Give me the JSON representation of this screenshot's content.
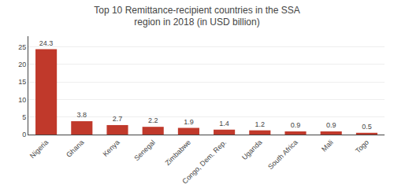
{
  "chart_data": {
    "type": "bar",
    "title": "Top 10 Remittance-recipient countries in the SSA\nregion in 2018 (in USD billion)",
    "categories": [
      "Nigeria",
      "Ghana",
      "Kenya",
      "Senegal",
      "Zimbabwe",
      "Congo, Dem. Rep.",
      "Uganda",
      "South Africa",
      "Mali",
      "Togo"
    ],
    "values": [
      24.3,
      3.8,
      2.7,
      2.2,
      1.9,
      1.4,
      1.2,
      0.9,
      0.9,
      0.5
    ],
    "color": "#c0392b",
    "ylim": [
      0,
      28
    ],
    "yticks": [
      0,
      5,
      10,
      15,
      20,
      25
    ],
    "grid": true,
    "data_labels": true
  }
}
